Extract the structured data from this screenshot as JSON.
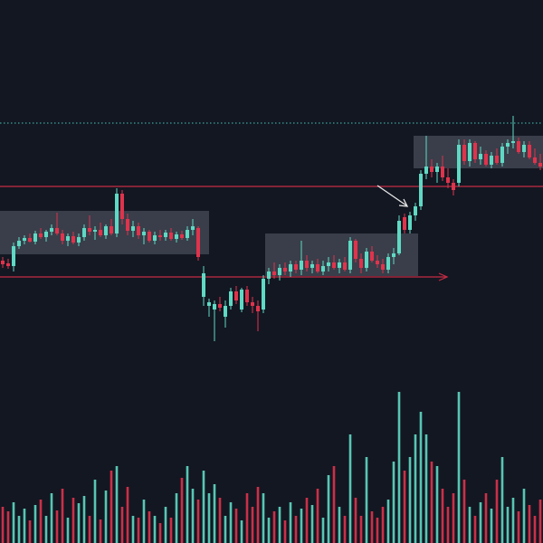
{
  "chart_data": {
    "type": "candlestick",
    "open": [
      312,
      309,
      306,
      328,
      334,
      337,
      333,
      342,
      338,
      344,
      348,
      342,
      334,
      339,
      332,
      338,
      348,
      344,
      346,
      340,
      350,
      342,
      386,
      358,
      345,
      350,
      340,
      344,
      334,
      340,
      338,
      343,
      336,
      341,
      337,
      346,
      348,
      272,
      262,
      258,
      264,
      250,
      262,
      278,
      258,
      280,
      266,
      262,
      258,
      292,
      300,
      296,
      304,
      300,
      308,
      302,
      312,
      304,
      308,
      300,
      306,
      310,
      304,
      310,
      302,
      334,
      314,
      304,
      322,
      312,
      308,
      302,
      316,
      320,
      360,
      346,
      362,
      372,
      408,
      416,
      410,
      416,
      404,
      398,
      398,
      440,
      422,
      442,
      424,
      430,
      418,
      428,
      420,
      438,
      442,
      444,
      432,
      440,
      426,
      420
    ],
    "high": [
      316,
      314,
      332,
      338,
      340,
      342,
      345,
      348,
      346,
      352,
      365,
      346,
      342,
      344,
      342,
      352,
      362,
      350,
      354,
      352,
      358,
      392,
      390,
      364,
      356,
      354,
      348,
      346,
      344,
      346,
      346,
      348,
      344,
      345,
      350,
      358,
      350,
      306,
      270,
      268,
      272,
      268,
      282,
      284,
      282,
      284,
      272,
      268,
      296,
      304,
      310,
      308,
      310,
      312,
      312,
      334,
      318,
      312,
      314,
      312,
      316,
      318,
      314,
      316,
      338,
      336,
      320,
      326,
      328,
      318,
      314,
      320,
      326,
      362,
      364,
      366,
      376,
      412,
      450,
      424,
      420,
      428,
      414,
      402,
      446,
      446,
      446,
      444,
      438,
      434,
      432,
      436,
      442,
      446,
      472,
      448,
      444,
      444,
      436,
      430
    ],
    "low": [
      304,
      303,
      300,
      325,
      330,
      332,
      330,
      336,
      333,
      340,
      340,
      330,
      328,
      330,
      328,
      334,
      340,
      335,
      338,
      336,
      340,
      338,
      352,
      340,
      338,
      336,
      330,
      332,
      330,
      334,
      334,
      334,
      332,
      335,
      334,
      340,
      312,
      262,
      250,
      223,
      256,
      238,
      258,
      264,
      255,
      262,
      254,
      234,
      254,
      286,
      292,
      290,
      296,
      294,
      298,
      296,
      300,
      298,
      298,
      296,
      300,
      302,
      298,
      300,
      298,
      310,
      298,
      300,
      310,
      304,
      298,
      298,
      308,
      318,
      342,
      342,
      356,
      368,
      402,
      404,
      398,
      400,
      392,
      384,
      394,
      418,
      416,
      420,
      418,
      416,
      414,
      418,
      416,
      430,
      436,
      430,
      426,
      424,
      418,
      412
    ],
    "close": [
      308,
      306,
      328,
      334,
      337,
      333,
      342,
      338,
      344,
      348,
      342,
      334,
      339,
      332,
      338,
      348,
      344,
      346,
      340,
      350,
      342,
      386,
      358,
      345,
      350,
      340,
      344,
      334,
      340,
      338,
      343,
      336,
      341,
      337,
      346,
      350,
      316,
      298,
      266,
      264,
      260,
      262,
      278,
      268,
      280,
      266,
      262,
      256,
      292,
      300,
      296,
      304,
      300,
      308,
      302,
      312,
      304,
      308,
      300,
      306,
      310,
      304,
      310,
      302,
      334,
      314,
      304,
      322,
      312,
      308,
      302,
      316,
      320,
      356,
      346,
      362,
      372,
      408,
      416,
      410,
      416,
      404,
      398,
      390,
      440,
      422,
      442,
      424,
      430,
      418,
      428,
      420,
      438,
      442,
      444,
      432,
      440,
      426,
      420,
      416
    ],
    "volume": [
      40,
      35,
      45,
      30,
      38,
      25,
      42,
      48,
      30,
      55,
      36,
      60,
      28,
      50,
      44,
      52,
      30,
      70,
      26,
      58,
      80,
      85,
      40,
      62,
      30,
      28,
      48,
      35,
      30,
      22,
      40,
      28,
      55,
      72,
      85,
      60,
      48,
      80,
      55,
      65,
      50,
      30,
      45,
      38,
      25,
      55,
      40,
      62,
      55,
      28,
      35,
      40,
      25,
      45,
      30,
      38,
      50,
      42,
      60,
      28,
      75,
      85,
      40,
      30,
      120,
      50,
      30,
      95,
      35,
      28,
      40,
      48,
      90,
      167,
      80,
      95,
      120,
      145,
      120,
      90,
      85,
      60,
      40,
      55,
      167,
      70,
      40,
      30,
      45,
      55,
      38,
      70,
      95,
      40,
      50,
      35,
      60,
      42,
      30,
      48
    ],
    "ylim": [
      0,
      600
    ],
    "volume_lim": [
      0,
      600
    ],
    "up_color": "#5fd9c4",
    "down_color": "#e0334c",
    "levels": [
      {
        "value": 464,
        "color": "#3aa39a",
        "style": "dotted"
      },
      {
        "value": 394,
        "color": "#c62b43",
        "style": "solid"
      },
      {
        "value": 294,
        "color": "#c62b43",
        "style": "solid"
      }
    ]
  }
}
